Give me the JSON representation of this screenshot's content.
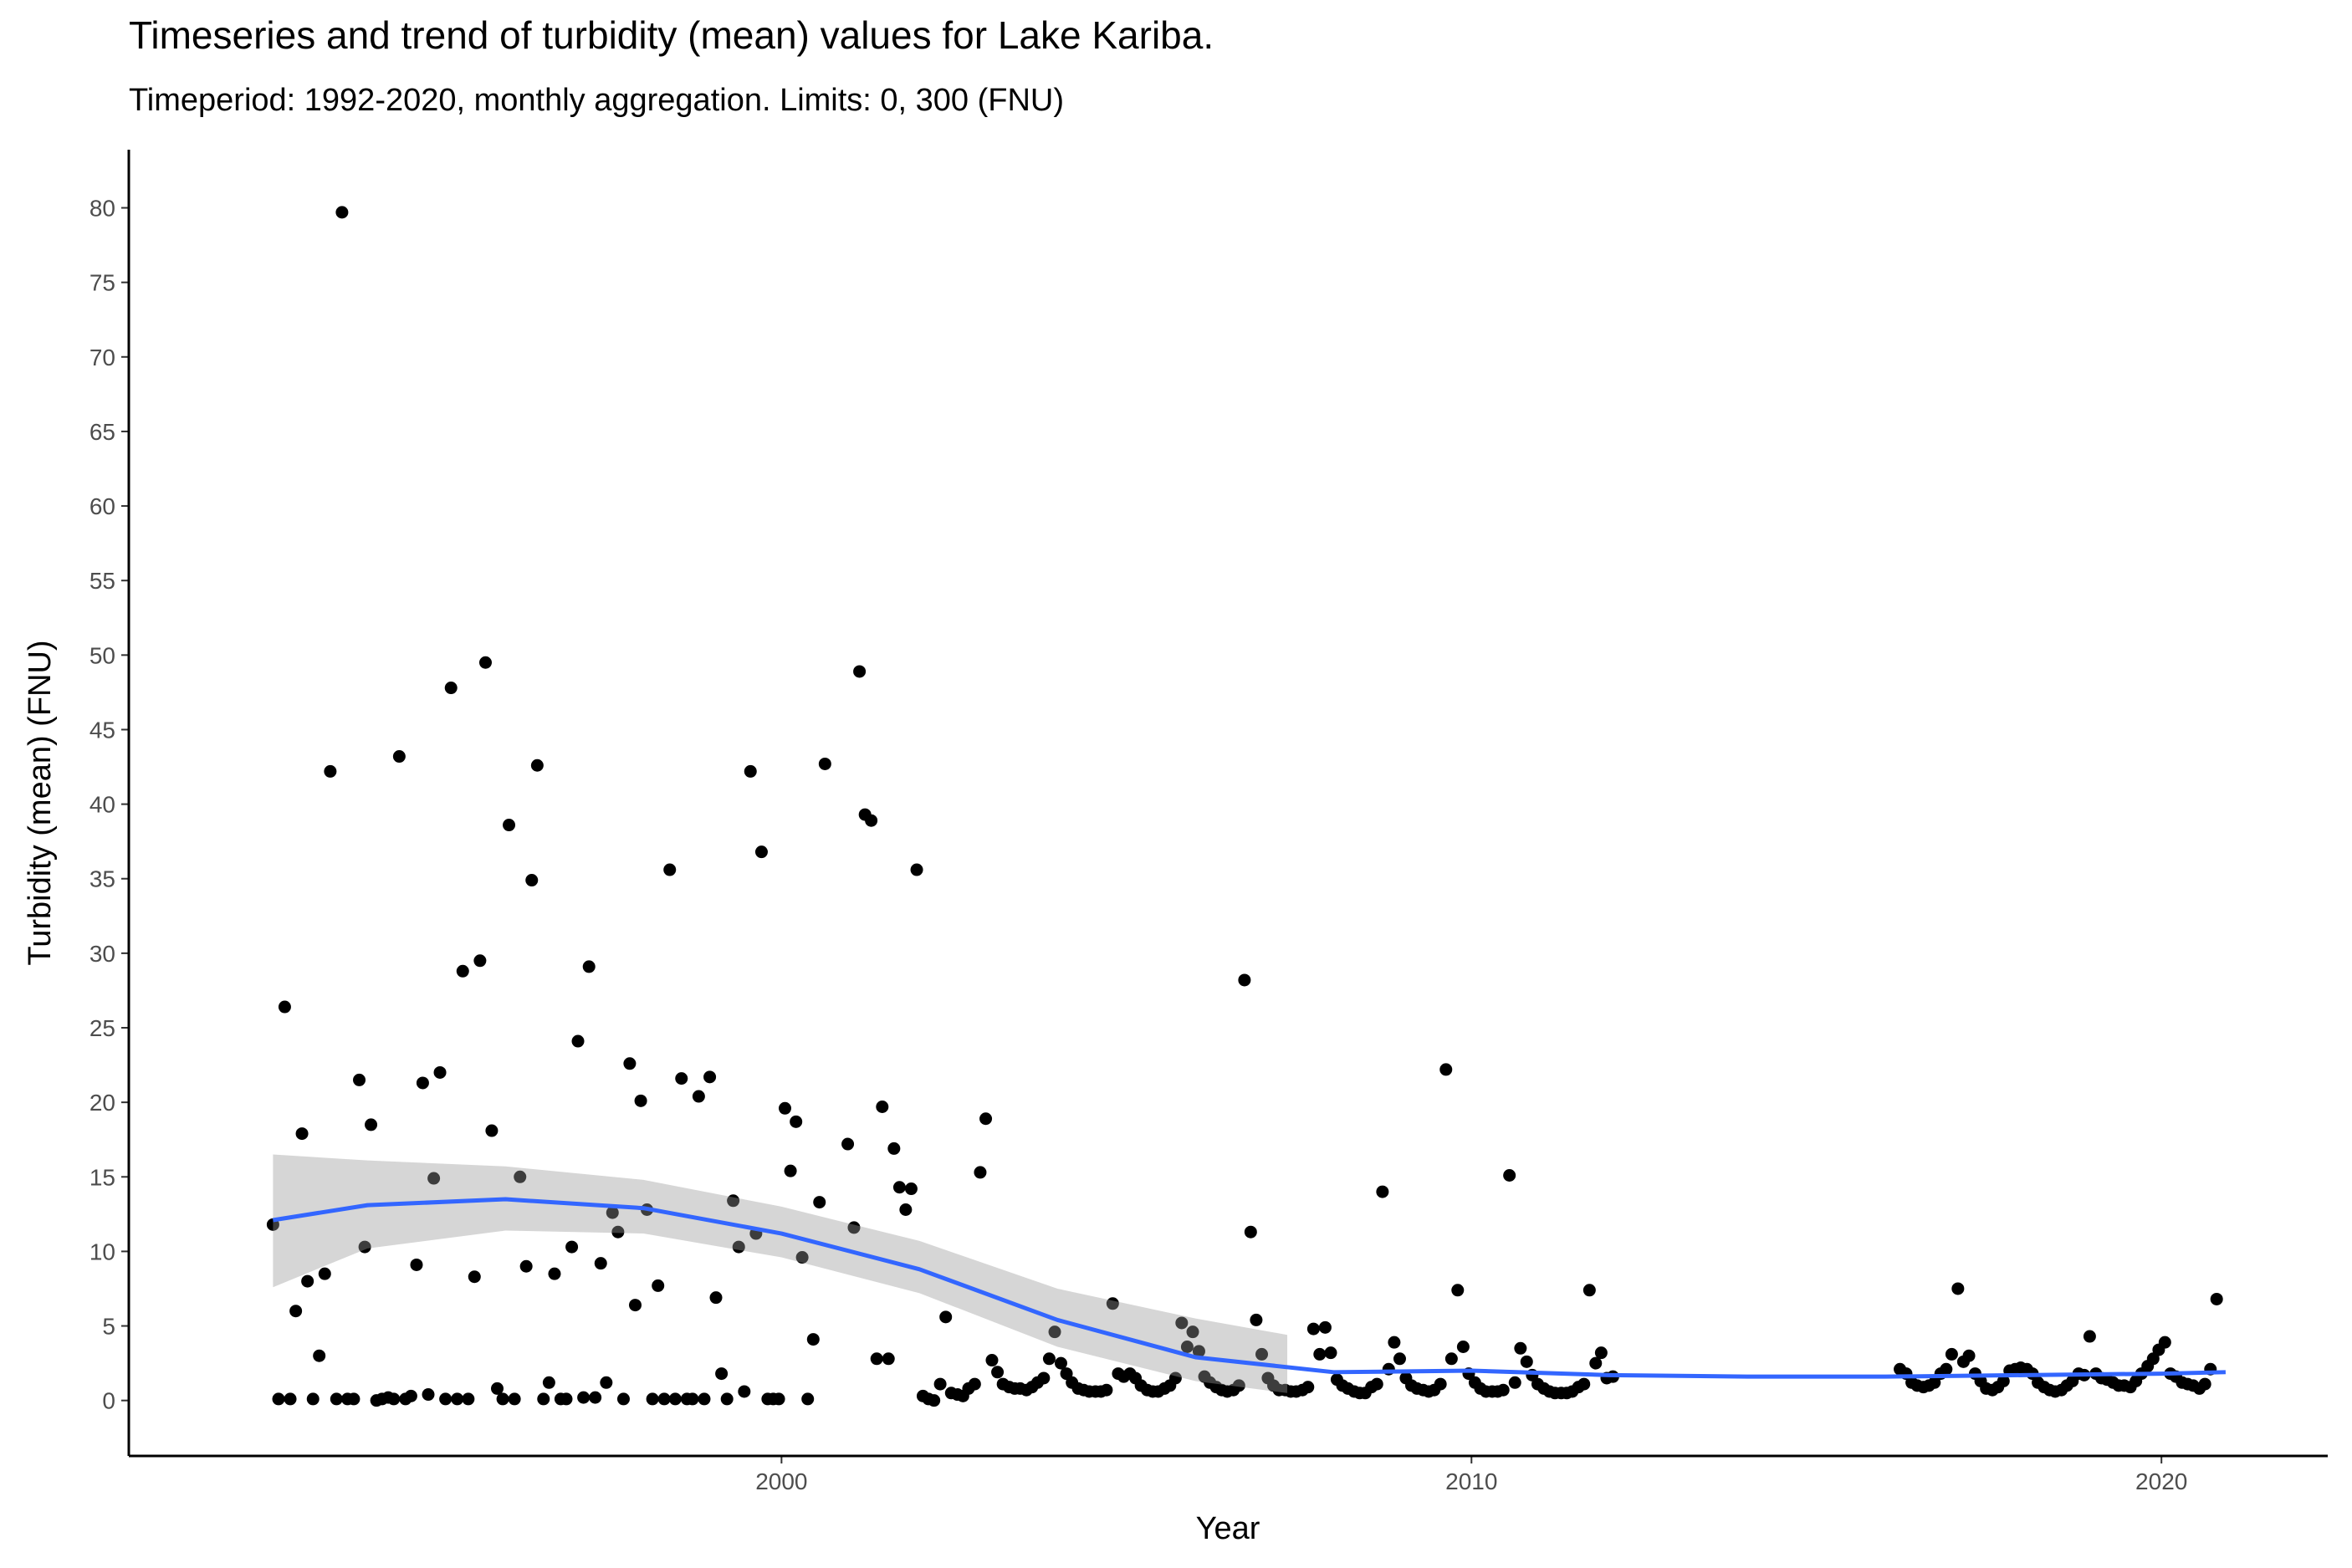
{
  "chart_data": {
    "type": "scatter",
    "title": "Timeseries and trend of turbidity (mean) values for Lake Kariba.",
    "subtitle": "Timeperiod: 1992-2020, monthly aggregation. Limits: 0, 300 (FNU)",
    "x_label": "Year",
    "y_label": "Turbidity (mean) (FNU)",
    "xlim": [
      1990.54,
      2022.41
    ],
    "xticks": [
      2000,
      2010,
      2020
    ],
    "ylim": [
      -3.72,
      83.9
    ],
    "yticks": [
      0,
      5,
      10,
      15,
      20,
      25,
      30,
      35,
      40,
      45,
      50,
      55,
      60,
      65,
      70,
      75,
      80
    ],
    "color": "#000000",
    "x": [
      1992.63,
      1992.71,
      1992.8,
      1992.88,
      1992.96,
      1993.05,
      1993.13,
      1993.21,
      1993.3,
      1993.38,
      1993.46,
      1993.55,
      1993.63,
      1993.71,
      1993.8,
      1993.88,
      1993.96,
      1994.05,
      1994.13,
      1994.21,
      1994.3,
      1994.38,
      1994.46,
      1994.55,
      1994.63,
      1994.71,
      1994.8,
      1994.88,
      1994.96,
      1995.05,
      1995.13,
      1995.21,
      1995.3,
      1995.38,
      1995.46,
      1995.55,
      1995.63,
      1995.71,
      1995.8,
      1995.88,
      1995.96,
      1996.05,
      1996.13,
      1996.21,
      1996.3,
      1996.38,
      1996.46,
      1996.55,
      1996.63,
      1996.71,
      1996.8,
      1996.88,
      1996.96,
      1997.05,
      1997.13,
      1997.21,
      1997.3,
      1997.38,
      1997.46,
      1997.55,
      1997.63,
      1997.71,
      1997.8,
      1997.88,
      1997.96,
      1998.05,
      1998.13,
      1998.21,
      1998.3,
      1998.38,
      1998.46,
      1998.55,
      1998.63,
      1998.71,
      1998.8,
      1998.88,
      1998.96,
      1999.05,
      1999.13,
      1999.21,
      1999.3,
      1999.38,
      1999.46,
      1999.55,
      1999.63,
      1999.71,
      1999.8,
      1999.88,
      1999.96,
      2000.05,
      2000.13,
      2000.21,
      2000.3,
      2000.38,
      2000.46,
      2000.55,
      2000.63,
      2000.96,
      2001.05,
      2001.13,
      2001.21,
      2001.3,
      2001.38,
      2001.46,
      2001.55,
      2001.63,
      2001.71,
      2001.8,
      2001.88,
      2001.96,
      2002.05,
      2002.13,
      2002.21,
      2002.3,
      2002.38,
      2002.46,
      2002.55,
      2002.63,
      2002.71,
      2002.8,
      2002.88,
      2002.96,
      2003.05,
      2003.13,
      2003.21,
      2003.3,
      2003.38,
      2003.46,
      2003.55,
      2003.63,
      2003.71,
      2003.8,
      2003.88,
      2003.96,
      2004.05,
      2004.13,
      2004.21,
      2004.3,
      2004.38,
      2004.46,
      2004.55,
      2004.63,
      2004.71,
      2004.8,
      2004.88,
      2004.96,
      2005.05,
      2005.13,
      2005.21,
      2005.3,
      2005.38,
      2005.46,
      2005.55,
      2005.63,
      2005.71,
      2005.8,
      2005.88,
      2005.96,
      2006.05,
      2006.13,
      2006.21,
      2006.3,
      2006.38,
      2006.46,
      2006.55,
      2006.63,
      2006.71,
      2006.8,
      2006.88,
      2006.96,
      2007.05,
      2007.13,
      2007.21,
      2007.3,
      2007.38,
      2007.46,
      2007.55,
      2007.63,
      2007.71,
      2007.8,
      2007.88,
      2007.96,
      2008.05,
      2008.13,
      2008.21,
      2008.3,
      2008.38,
      2008.46,
      2008.55,
      2008.63,
      2008.71,
      2008.8,
      2008.88,
      2008.96,
      2009.05,
      2009.13,
      2009.21,
      2009.3,
      2009.38,
      2009.46,
      2009.55,
      2009.63,
      2009.71,
      2009.8,
      2009.88,
      2009.96,
      2010.05,
      2010.13,
      2010.21,
      2010.3,
      2010.38,
      2010.46,
      2010.55,
      2010.63,
      2010.71,
      2010.8,
      2010.88,
      2010.96,
      2011.05,
      2011.13,
      2011.21,
      2011.3,
      2011.38,
      2011.46,
      2011.55,
      2011.63,
      2011.71,
      2011.8,
      2011.88,
      2011.96,
      2012.05,
      2016.21,
      2016.3,
      2016.38,
      2016.46,
      2016.55,
      2016.63,
      2016.71,
      2016.8,
      2016.88,
      2016.96,
      2017.05,
      2017.13,
      2017.21,
      2017.3,
      2017.38,
      2017.46,
      2017.55,
      2017.63,
      2017.71,
      2017.8,
      2017.88,
      2017.96,
      2018.05,
      2018.13,
      2018.21,
      2018.3,
      2018.38,
      2018.46,
      2018.55,
      2018.63,
      2018.71,
      2018.8,
      2018.88,
      2018.96,
      2019.05,
      2019.13,
      2019.21,
      2019.3,
      2019.38,
      2019.46,
      2019.55,
      2019.63,
      2019.71,
      2019.8,
      2019.88,
      2019.96,
      2020.05,
      2020.13,
      2020.21,
      2020.3,
      2020.38,
      2020.46,
      2020.55,
      2020.63,
      2020.71,
      2020.8
    ],
    "values": [
      11.8,
      0.1,
      26.4,
      0.1,
      6,
      17.9,
      8,
      0.1,
      3,
      8.5,
      42.2,
      0.1,
      79.7,
      0.1,
      0.1,
      21.5,
      10.3,
      18.5,
      0,
      0.1,
      0.2,
      0.1,
      43.2,
      0.1,
      0.3,
      9.1,
      21.3,
      0.4,
      14.9,
      22,
      0.1,
      47.8,
      0.1,
      28.8,
      0.1,
      8.3,
      29.5,
      49.5,
      18.1,
      0.8,
      0.1,
      38.6,
      0.1,
      15,
      9,
      34.9,
      42.6,
      0.1,
      1.2,
      8.5,
      0.1,
      0.1,
      10.3,
      24.1,
      0.2,
      29.1,
      0.2,
      9.2,
      1.2,
      12.6,
      11.3,
      0.1,
      22.6,
      6.4,
      20.1,
      12.8,
      0.1,
      7.7,
      0.1,
      35.6,
      0.1,
      21.6,
      0.1,
      0.1,
      20.4,
      0.1,
      21.7,
      6.9,
      1.8,
      0.1,
      13.4,
      10.3,
      0.6,
      42.2,
      11.2,
      36.8,
      0.1,
      0.1,
      0.1,
      19.6,
      15.4,
      18.7,
      9.6,
      0.1,
      4.1,
      13.3,
      42.7,
      17.2,
      11.6,
      48.9,
      39.3,
      38.9,
      2.8,
      19.7,
      2.8,
      16.9,
      14.3,
      12.8,
      14.2,
      35.6,
      0.3,
      0.1,
      0,
      1.1,
      5.6,
      0.5,
      0.4,
      0.3,
      0.8,
      1.1,
      15.3,
      18.9,
      2.7,
      1.9,
      1.1,
      0.9,
      0.8,
      0.8,
      0.7,
      0.9,
      1.2,
      1.5,
      2.8,
      4.6,
      2.5,
      1.8,
      1.2,
      0.8,
      0.7,
      0.6,
      0.6,
      0.6,
      0.7,
      6.5,
      1.8,
      1.6,
      1.8,
      1.5,
      1.0,
      0.7,
      0.6,
      0.6,
      0.8,
      1.0,
      1.5,
      5.2,
      3.6,
      4.6,
      3.3,
      1.6,
      1.2,
      0.9,
      0.7,
      0.6,
      0.7,
      1.0,
      28.2,
      11.3,
      5.4,
      3.1,
      1.5,
      1.0,
      0.7,
      0.7,
      0.6,
      0.6,
      0.7,
      0.9,
      4.8,
      3.1,
      4.9,
      3.2,
      1.4,
      1.0,
      0.8,
      0.6,
      0.5,
      0.5,
      0.9,
      1.1,
      14,
      2.1,
      3.9,
      2.8,
      1.5,
      1.0,
      0.8,
      0.7,
      0.6,
      0.7,
      1.1,
      22.2,
      2.8,
      7.4,
      3.6,
      1.8,
      1.2,
      0.8,
      0.6,
      0.6,
      0.6,
      0.7,
      15.1,
      1.2,
      3.5,
      2.6,
      1.7,
      1.1,
      0.8,
      0.6,
      0.5,
      0.5,
      0.5,
      0.6,
      0.9,
      1.1,
      7.4,
      2.5,
      3.2,
      1.5,
      1.6,
      2.1,
      1.8,
      1.2,
      1.0,
      0.9,
      1.0,
      1.2,
      1.8,
      2.1,
      3.1,
      7.5,
      2.6,
      3.0,
      1.8,
      1.3,
      0.8,
      0.7,
      0.9,
      1.3,
      2.0,
      2.1,
      2.2,
      2.1,
      1.8,
      1.2,
      0.9,
      0.7,
      0.6,
      0.7,
      1.0,
      1.3,
      1.8,
      1.7,
      4.3,
      1.8,
      1.5,
      1.4,
      1.2,
      1.0,
      1.0,
      0.9,
      1.3,
      1.8,
      2.3,
      2.8,
      3.4,
      3.9,
      1.8,
      1.6,
      1.2,
      1.1,
      1.0,
      0.8,
      1.1,
      2.1,
      6.8
    ],
    "trend": {
      "color": "#3366ff",
      "x": [
        1992.63,
        1994,
        1996,
        1998,
        2000,
        2002,
        2004,
        2006,
        2008,
        2010,
        2012,
        2014,
        2016,
        2018,
        2020,
        2020.93
      ],
      "values": [
        12.1,
        13.1,
        13.5,
        12.9,
        11.2,
        8.8,
        5.4,
        2.9,
        1.9,
        2.0,
        1.7,
        1.6,
        1.6,
        1.7,
        1.8,
        1.9
      ]
    },
    "band": {
      "color": "#999999",
      "x": [
        1992.63,
        1994,
        1996,
        1998,
        2000,
        2002,
        2004,
        2006,
        2007.33
      ],
      "lower": [
        7.6,
        10.2,
        11.4,
        11.2,
        9.6,
        7.2,
        3.6,
        1.3,
        0.5
      ],
      "upper": [
        16.5,
        16.1,
        15.7,
        14.8,
        13,
        10.7,
        7.5,
        5.5,
        4.4
      ]
    }
  }
}
